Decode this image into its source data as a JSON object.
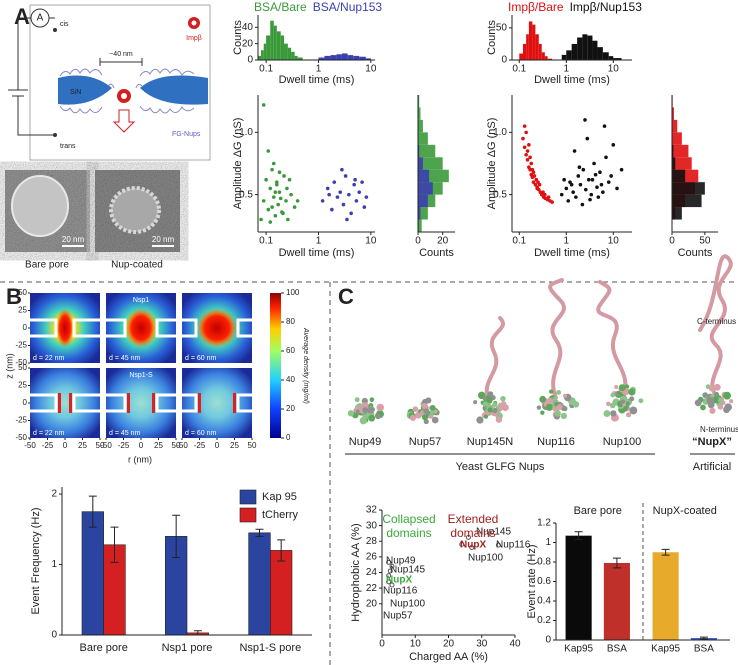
{
  "panel_labels": [
    "A",
    "B",
    "C"
  ],
  "schematic": {
    "ammeter": "A",
    "cis": "cis",
    "trans": "trans",
    "width": "~40 nm",
    "protein": "Impβ",
    "membrane": "SiN",
    "nups": "FG-Nups"
  },
  "micrographs": {
    "scale": "20 nm",
    "labels": [
      "Bare pore",
      "Nup-coated"
    ]
  },
  "structures": {
    "names": [
      "Nup49",
      "Nup57",
      "Nup145N",
      "Nup116",
      "Nup100",
      "“NupX”"
    ],
    "group_labels": [
      "Yeast GLFG Nups",
      "Artificial"
    ],
    "terminus": [
      "C-terminus",
      "N-terminus"
    ]
  },
  "chart_data": [
    {
      "type": "histogram",
      "xscale": "log",
      "xlim": [
        0.07,
        12
      ],
      "xticks": [
        0.1,
        1,
        10
      ],
      "ylim": [
        0,
        55
      ],
      "yticks": [
        0,
        20,
        40
      ],
      "xlabel": "Dwell time (ms)",
      "ylabel": "Counts",
      "series": [
        {
          "name": "BSA/Bare",
          "color": "#3a9a3a",
          "bins": [
            0.07,
            0.08,
            0.09,
            0.1,
            0.12,
            0.14,
            0.16,
            0.19,
            0.22,
            0.26,
            0.3,
            0.35,
            0.4,
            0.5
          ],
          "values": [
            5,
            12,
            20,
            30,
            48,
            42,
            35,
            30,
            20,
            15,
            10,
            5,
            3
          ]
        },
        {
          "name": "BSA/Nup153",
          "color": "#3b3fb0",
          "bins": [
            1,
            1.3,
            1.7,
            2.2,
            2.8,
            3.6,
            4.6,
            6,
            8,
            10
          ],
          "values": [
            3,
            5,
            6,
            7,
            8,
            6,
            5,
            4,
            2
          ]
        }
      ]
    },
    {
      "type": "scatter",
      "xscale": "log",
      "xlim": [
        0.07,
        12
      ],
      "xticks": [
        0.1,
        1,
        10
      ],
      "ylim": [
        0.2,
        1.3
      ],
      "yticks": [
        0.5,
        {
          "value": 1,
          "label": "1.0"
        }
      ],
      "xlabel": "Dwell time (ms)",
      "ylabel": "Amplitude ΔG (nS)",
      "series": [
        {
          "color": "#3a9a3a",
          "x": [
            0.09,
            0.1,
            0.11,
            0.12,
            0.13,
            0.14,
            0.15,
            0.16,
            0.17,
            0.18,
            0.2,
            0.22,
            0.24,
            0.26,
            0.3,
            0.35,
            0.12,
            0.14,
            0.16,
            0.19,
            0.21,
            0.25,
            0.28,
            0.11,
            0.13,
            0.15,
            0.09,
            0.08,
            0.18,
            0.4
          ],
          "values": [
            0.45,
            0.62,
            0.38,
            0.55,
            0.7,
            0.48,
            0.33,
            0.6,
            0.42,
            0.52,
            0.36,
            0.65,
            0.45,
            0.3,
            0.5,
            0.4,
            0.28,
            0.75,
            0.58,
            0.47,
            0.35,
            0.55,
            0.62,
            0.85,
            0.4,
            0.52,
            1.22,
            0.3,
            0.68,
            0.45
          ]
        },
        {
          "color": "#3b3fb0",
          "x": [
            1.2,
            1.5,
            1.8,
            2.0,
            2.3,
            2.6,
            3.0,
            3.3,
            3.8,
            4.2,
            4.8,
            5.3,
            6.0,
            6.8,
            7.5,
            8.2,
            2.8,
            3.5,
            5.0,
            1.6
          ],
          "values": [
            0.45,
            0.55,
            0.38,
            0.6,
            0.48,
            0.52,
            0.42,
            0.65,
            0.5,
            0.35,
            0.58,
            0.45,
            0.52,
            0.6,
            0.4,
            0.48,
            0.7,
            0.3,
            0.62,
            0.5
          ]
        }
      ]
    },
    {
      "type": "histogram",
      "orientation": "horizontal",
      "ylim": [
        0.2,
        1.3
      ],
      "xlim": [
        0,
        30
      ],
      "xticks": [
        0,
        20
      ],
      "xlabel": "Counts",
      "series": [
        {
          "color": "#3a9a3a",
          "bins": [
            0.2,
            0.3,
            0.4,
            0.5,
            0.6,
            0.7,
            0.8,
            0.9,
            1.0,
            1.1,
            1.2,
            1.3
          ],
          "values": [
            3,
            8,
            14,
            20,
            25,
            20,
            14,
            8,
            4,
            2,
            1
          ]
        },
        {
          "color": "#3b3fb0",
          "bins": [
            0.2,
            0.3,
            0.4,
            0.5,
            0.6,
            0.7,
            0.8,
            0.9,
            1.0,
            1.1,
            1.2,
            1.3
          ],
          "values": [
            0,
            2,
            8,
            12,
            9,
            4,
            1,
            0,
            0,
            0,
            0
          ]
        }
      ]
    },
    {
      "type": "histogram",
      "xscale": "log",
      "xlim": [
        0.07,
        25
      ],
      "xticks": [
        0.1,
        1,
        10
      ],
      "ylim": [
        0,
        70
      ],
      "yticks": [
        0,
        50
      ],
      "xlabel": "Dwell time (ms)",
      "ylabel": "Counts",
      "series": [
        {
          "name": "Impβ/Bare",
          "color": "#e01010",
          "bins": [
            0.1,
            0.12,
            0.14,
            0.16,
            0.19,
            0.22,
            0.26,
            0.3,
            0.35,
            0.4,
            0.5
          ],
          "values": [
            10,
            25,
            40,
            60,
            55,
            40,
            25,
            12,
            6,
            2
          ]
        },
        {
          "name": "Impβ/Nup153",
          "color": "#111111",
          "bins": [
            0.8,
            1,
            1.3,
            1.7,
            2.2,
            2.8,
            3.6,
            4.6,
            6,
            8,
            10,
            15
          ],
          "values": [
            8,
            15,
            25,
            35,
            40,
            38,
            30,
            20,
            12,
            6,
            3
          ]
        }
      ]
    },
    {
      "type": "scatter",
      "xscale": "log",
      "xlim": [
        0.07,
        25
      ],
      "xticks": [
        0.1,
        1,
        10
      ],
      "ylim": [
        0.2,
        1.3
      ],
      "yticks": [
        0.5,
        {
          "value": 1,
          "label": "1.0"
        }
      ],
      "xlabel": "Dwell time (ms)",
      "ylabel": "Amplitude ΔG (nS)",
      "series": [
        {
          "color": "#e01010",
          "x": [
            0.12,
            0.13,
            0.14,
            0.15,
            0.16,
            0.17,
            0.18,
            0.19,
            0.2,
            0.22,
            0.24,
            0.26,
            0.28,
            0.3,
            0.33,
            0.36,
            0.4,
            0.45,
            0.5,
            0.14,
            0.16,
            0.18,
            0.2,
            0.23,
            0.27,
            0.32,
            0.15,
            0.17,
            0.21,
            0.25,
            0.13,
            0.19,
            0.24,
            0.35,
            0.42
          ],
          "values": [
            0.95,
            0.88,
            0.82,
            0.78,
            0.72,
            0.7,
            0.66,
            0.64,
            0.6,
            0.58,
            0.55,
            0.54,
            0.52,
            0.5,
            0.48,
            0.47,
            0.46,
            0.45,
            0.44,
            1.0,
            0.9,
            0.75,
            0.68,
            0.62,
            0.58,
            0.52,
            0.85,
            0.8,
            0.65,
            0.6,
            1.05,
            0.7,
            0.56,
            0.5,
            0.48
          ]
        },
        {
          "color": "#111111",
          "x": [
            0.8,
            1.0,
            1.2,
            1.4,
            1.6,
            1.8,
            2.0,
            2.3,
            2.6,
            3.0,
            3.4,
            3.9,
            4.5,
            5.2,
            6.0,
            7.0,
            8.0,
            10,
            12,
            15,
            1.1,
            1.5,
            2.2,
            2.8,
            3.6,
            4.8,
            6.5,
            9,
            1.3,
            1.9,
            2.5,
            3.2,
            4.2,
            5.6,
            0.9
          ],
          "values": [
            0.5,
            0.55,
            0.6,
            0.52,
            0.48,
            0.65,
            0.58,
            0.7,
            0.54,
            0.62,
            0.5,
            0.75,
            0.56,
            0.68,
            0.52,
            0.8,
            0.6,
            0.9,
            0.55,
            0.7,
            0.45,
            0.85,
            0.42,
            0.95,
            0.62,
            0.48,
            1.05,
            0.65,
            0.58,
            0.72,
            1.1,
            0.46,
            0.66,
            0.58,
            0.62
          ]
        }
      ]
    },
    {
      "type": "histogram",
      "orientation": "horizontal",
      "ylim": [
        0.2,
        1.3
      ],
      "xlim": [
        0,
        70
      ],
      "xticks": [
        0,
        50
      ],
      "xlabel": "Counts",
      "series": [
        {
          "color": "#e01010",
          "bins": [
            0.2,
            0.3,
            0.4,
            0.5,
            0.6,
            0.7,
            0.8,
            0.9,
            1.0,
            1.1,
            1.2,
            1.3
          ],
          "values": [
            0,
            5,
            20,
            35,
            40,
            30,
            25,
            15,
            8,
            3,
            1
          ]
        },
        {
          "color": "#111111",
          "bins": [
            0.2,
            0.3,
            0.4,
            0.5,
            0.6,
            0.7,
            0.8,
            0.9,
            1.0,
            1.1,
            1.2,
            1.3
          ],
          "values": [
            0,
            15,
            45,
            50,
            20,
            5,
            2,
            0,
            0,
            0,
            0
          ]
        }
      ]
    },
    {
      "type": "heatmap",
      "xlim": [
        -50,
        50
      ],
      "xticks": [
        -50,
        -25,
        0,
        25,
        50
      ],
      "ylim": [
        -50,
        50
      ],
      "yticks": [
        -50,
        -25,
        0,
        25,
        50
      ],
      "xlabel": "r (nm)",
      "ylabel": "z (nm)",
      "panels": [
        {
          "note": "d = 22 nm"
        },
        {
          "title": "Nsp1",
          "note": "d = 45 nm"
        },
        {
          "note": "d = 60 nm"
        },
        {
          "note": "d = 22 nm"
        },
        {
          "title": "Nsp1-S",
          "note": "d = 45 nm"
        },
        {
          "note": "d = 60 nm"
        }
      ],
      "colorbar": {
        "lim": [
          0,
          100
        ],
        "ticks": [
          0,
          20,
          40,
          60,
          80,
          100
        ],
        "label": "Average density (mg/ml)"
      }
    },
    {
      "type": "bar",
      "categories": [
        "Bare pore",
        "Nsp1 pore",
        "Nsp1-S pore"
      ],
      "ylim": [
        0,
        2.1
      ],
      "yticks": [
        0,
        1,
        2
      ],
      "ylabel": "Event Frequency (Hz)",
      "legend": "upper right",
      "series": [
        {
          "name": "Kap 95",
          "color": "#2a44a0",
          "values": [
            1.75,
            1.4,
            1.45
          ],
          "errors": [
            0.22,
            0.3,
            0.05
          ]
        },
        {
          "name": "tCherry",
          "color": "#d42020",
          "values": [
            1.28,
            0.03,
            1.2
          ],
          "errors": [
            0.25,
            0.03,
            0.15
          ]
        }
      ]
    },
    {
      "type": "scatter",
      "xlim": [
        0,
        40
      ],
      "xticks": [
        0,
        10,
        20,
        30,
        40
      ],
      "ylim": [
        16,
        32
      ],
      "yticks": [
        20,
        22,
        24,
        26,
        28,
        30,
        32
      ],
      "xlabel": "Charged AA (%)",
      "ylabel": "Hydrophobic AA (%)",
      "x": [
        2,
        3,
        2.5,
        2,
        2,
        3,
        26,
        24,
        35,
        27
      ],
      "values": [
        25.3,
        24.8,
        24.2,
        23.6,
        22.8,
        22.4,
        28.5,
        27.6,
        27.5,
        27.2
      ],
      "point_labels": [
        "Nup49",
        "Nup145",
        "NupX",
        "Nup116",
        "Nup100",
        "Nup57",
        "Nup145",
        "NupX",
        "Nup116",
        "Nup100"
      ],
      "label_colors": [
        "#222222",
        "#222222",
        "#3aa83a",
        "#222222",
        "#222222",
        "#222222",
        "#222222",
        "#a02020",
        "#222222",
        "#222222"
      ],
      "annotations": [
        {
          "text": "Collapsed domains",
          "color": "#3aa83a"
        },
        {
          "text": "Extended domains",
          "color": "#a02020"
        }
      ]
    },
    {
      "type": "bar",
      "categories": [
        "Kap95",
        "BSA",
        "Kap95",
        "BSA"
      ],
      "values": [
        1.07,
        0.79,
        0.9,
        0.02
      ],
      "errors": [
        0.04,
        0.05,
        0.03,
        0.01
      ],
      "colors": [
        "#0a0a0a",
        "#c0302a",
        "#e8aa2a",
        "#3a5fc0"
      ],
      "groups": [
        "Bare pore",
        "NupX-coated"
      ],
      "ylim": [
        0,
        1.2
      ],
      "yticks": [
        0,
        0.2,
        0.4,
        0.6,
        0.8,
        1,
        1.2
      ],
      "ylabel": "Event rate (Hz)"
    }
  ]
}
